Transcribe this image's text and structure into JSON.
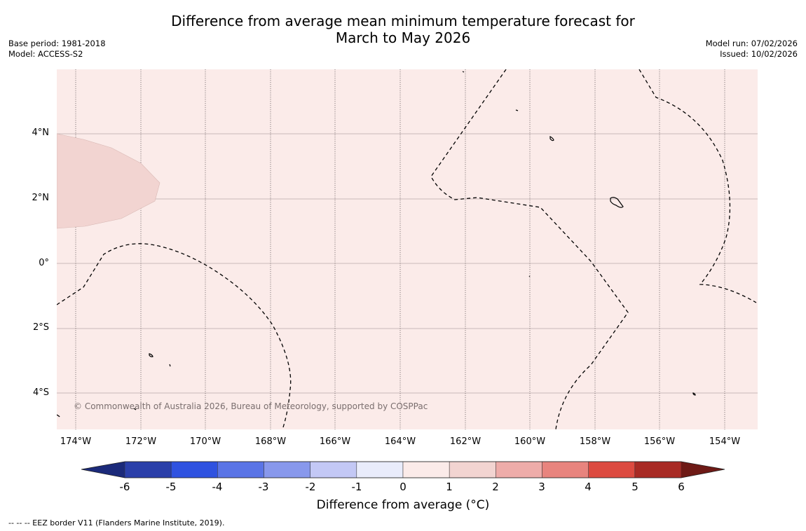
{
  "title": {
    "line1": "Difference from average mean minimum temperature forecast for",
    "line2": "March to May 2026"
  },
  "meta_left": {
    "base_period": "Base period: 1981-2018",
    "model": "Model: ACCESS-S2"
  },
  "meta_right": {
    "model_run": "Model run: 07/02/2026",
    "issued": "Issued: 10/02/2026"
  },
  "map": {
    "lat_labels": [
      "4°N",
      "2°N",
      "0°",
      "2°S",
      "4°S"
    ],
    "lon_labels": [
      "174°W",
      "172°W",
      "170°W",
      "168°W",
      "166°W",
      "164°W",
      "162°W",
      "160°W",
      "158°W",
      "156°W",
      "154°W"
    ],
    "copyright": "© Commonwealth of Australia 2026, Bureau of Meteorology, supported by COSPPac",
    "background_class": "0 to 1",
    "region_class": "1 to 2"
  },
  "colorbar": {
    "ticks": [
      "-6",
      "-5",
      "-4",
      "-3",
      "-2",
      "-1",
      "0",
      "1",
      "2",
      "3",
      "4",
      "5",
      "6"
    ],
    "colors": [
      "#2a3fa9",
      "#2f52e0",
      "#5a74e6",
      "#8898ec",
      "#c3c8f5",
      "#e9ecfb",
      "#fbebe9",
      "#f2d4d1",
      "#eeaca9",
      "#e8847e",
      "#dc4a40",
      "#a82a24"
    ],
    "under_color": "#1b2a7a",
    "over_color": "#6e1a16",
    "label": "Difference from average (°C)"
  },
  "footnote": "--  --  -- EEZ border V11 (Flanders Marine Institute, 2019)."
}
